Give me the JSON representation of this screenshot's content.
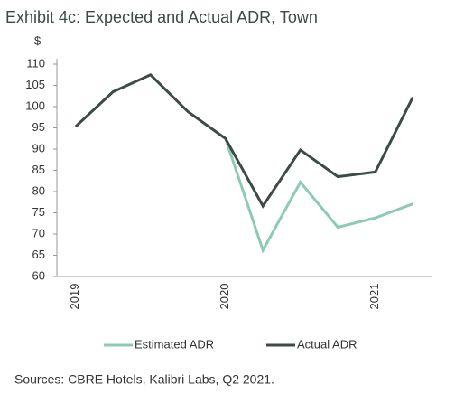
{
  "chart_data": {
    "type": "line",
    "title": "Exhibit 4c: Expected and Actual ADR, Town",
    "y_label": "$",
    "categories": [
      "2019",
      null,
      null,
      null,
      "2020",
      null,
      null,
      null,
      "2021",
      null
    ],
    "series": [
      {
        "name": "Estimated ADR",
        "color": "#8ccab6",
        "values": [
          null,
          null,
          null,
          null,
          92.5,
          66.2,
          82.2,
          71.6,
          73.8,
          77.1
        ]
      },
      {
        "name": "Actual ADR",
        "color": "#3d4a48",
        "values": [
          95.3,
          103.5,
          107.5,
          98.8,
          92.5,
          76.6,
          89.8,
          83.5,
          84.6,
          102.2
        ]
      }
    ],
    "ylim": [
      60,
      110
    ],
    "yticks": [
      60,
      65,
      70,
      75,
      80,
      85,
      90,
      95,
      100,
      105,
      110
    ],
    "legend": "bottom",
    "source": "Sources: CBRE Hotels, Kalibri Labs, Q2 2021."
  }
}
